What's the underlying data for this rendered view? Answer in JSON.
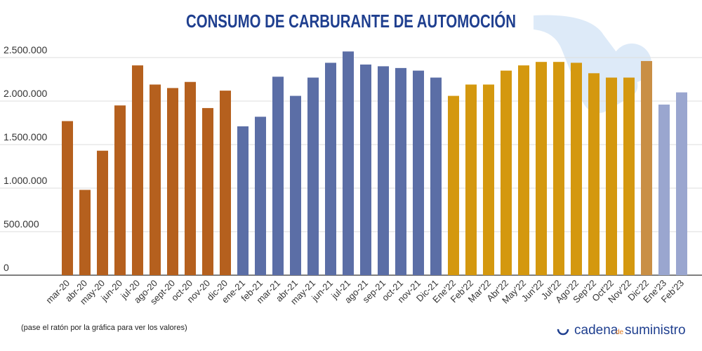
{
  "chart_data": {
    "type": "bar",
    "title": "CONSUMO DE CARBURANTE DE AUTOMOCIÓN",
    "categories": [
      "mar-20",
      "abr-20",
      "may-20",
      "jun-20",
      "jul-20",
      "ago-20",
      "sept-20",
      "oct-20",
      "nov-20",
      "dic-20",
      "ene-21",
      "feb-21",
      "mar-21",
      "abr-21",
      "may-21",
      "jun-21",
      "jul-21",
      "ago-21",
      "sep-21",
      "oct-21",
      "nov-21",
      "Dic-21",
      "Ene'22",
      "Feb'22",
      "Mar'22",
      "Abr'22",
      "May'22",
      "Jun'22",
      "Jul'22",
      "Ago'22",
      "Sep'22",
      "Oct'22",
      "Nov'22",
      "Dic'22",
      "Ene'23",
      "Feb'23"
    ],
    "values": [
      1770000,
      980000,
      1430000,
      1950000,
      2410000,
      2190000,
      2150000,
      2220000,
      1920000,
      2120000,
      1710000,
      1820000,
      2280000,
      2060000,
      2270000,
      2440000,
      2570000,
      2420000,
      2400000,
      2380000,
      2350000,
      2270000,
      2060000,
      2190000,
      2190000,
      2350000,
      2410000,
      2450000,
      2450000,
      2440000,
      2320000,
      2270000,
      2270000,
      2460000,
      1960000,
      2100000
    ],
    "colors": [
      "#b5601e",
      "#b5601e",
      "#b5601e",
      "#b5601e",
      "#b5601e",
      "#b5601e",
      "#b5601e",
      "#b5601e",
      "#b5601e",
      "#b5601e",
      "#5b6ea6",
      "#5b6ea6",
      "#5b6ea6",
      "#5b6ea6",
      "#5b6ea6",
      "#5b6ea6",
      "#5b6ea6",
      "#5b6ea6",
      "#5b6ea6",
      "#5b6ea6",
      "#5b6ea6",
      "#5b6ea6",
      "#d4980f",
      "#d4980f",
      "#d4980f",
      "#d4980f",
      "#d4980f",
      "#d4980f",
      "#d4980f",
      "#d4980f",
      "#d4980f",
      "#d4980f",
      "#d4980f",
      "#c98f45",
      "#9aa6cf",
      "#9aa6cf"
    ],
    "ylim": [
      0,
      2500000
    ],
    "yticks": [
      0,
      {
        "value": 500000,
        "label": "500.000"
      },
      {
        "value": 1000000,
        "label": "1.000.000"
      },
      {
        "value": 1500000,
        "label": "1.500.000"
      },
      {
        "value": 2000000,
        "label": "2.000.000"
      },
      {
        "value": 2500000,
        "label": "2.500.000"
      }
    ],
    "grid": true,
    "note": "(pase el ratón por la gráfica para ver los valores)"
  },
  "brand": {
    "word1": "cadena",
    "word2": "de",
    "word3": "suministro"
  }
}
